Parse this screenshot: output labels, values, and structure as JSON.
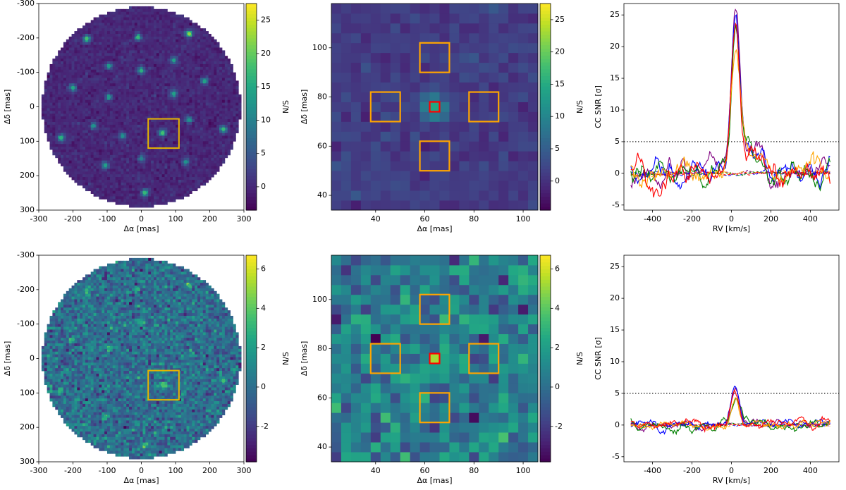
{
  "colors": {
    "viridis_stops": [
      "#440154",
      "#482475",
      "#414487",
      "#355f8d",
      "#2a788e",
      "#21918c",
      "#22a884",
      "#44bf70",
      "#7ad151",
      "#bddf26",
      "#fde725"
    ],
    "zoom_box_color": "#e6b400",
    "aperture_color": "#ffa500",
    "planet_box_color": "#ff0000",
    "rv_line_colors": [
      "#800080",
      "#0000ff",
      "#008000",
      "#ffa500",
      "#ff0000"
    ],
    "threshold_line_color": "#000000"
  },
  "chart_data": [
    {
      "id": "map_full_top",
      "type": "heatmap",
      "description_row": "top",
      "xlabel": "Δα [mas]",
      "ylabel": "Δδ [mas]",
      "xlim": [
        -300,
        300
      ],
      "ylim": [
        300,
        -300
      ],
      "xticks": [
        -300,
        -200,
        -100,
        0,
        100,
        200,
        300
      ],
      "yticks": [
        -300,
        -200,
        -100,
        0,
        100,
        200,
        300
      ],
      "field_radius": 290,
      "colorbar": {
        "label": "N/S",
        "vmin": -3.5,
        "vmax": 27.5,
        "ticks": [
          0,
          5,
          10,
          15,
          20,
          25
        ]
      },
      "noise_level": 0.9,
      "sources": [
        {
          "x": 140,
          "y": -212,
          "v": 22
        },
        {
          "x": -160,
          "y": -198,
          "v": 18
        },
        {
          "x": -10,
          "y": -202,
          "v": 17
        },
        {
          "x": 95,
          "y": -135,
          "v": 14
        },
        {
          "x": -95,
          "y": -118,
          "v": 13
        },
        {
          "x": 0,
          "y": -105,
          "v": 16
        },
        {
          "x": 185,
          "y": -75,
          "v": 14
        },
        {
          "x": -200,
          "y": -55,
          "v": 15
        },
        {
          "x": 95,
          "y": -38,
          "v": 14
        },
        {
          "x": -95,
          "y": -28,
          "v": 13
        },
        {
          "x": 140,
          "y": 38,
          "v": 12
        },
        {
          "x": -140,
          "y": 55,
          "v": 12
        },
        {
          "x": 240,
          "y": 65,
          "v": 17
        },
        {
          "x": 62,
          "y": 76,
          "v": 18
        },
        {
          "x": -55,
          "y": 85,
          "v": 12
        },
        {
          "x": -235,
          "y": 90,
          "v": 16
        },
        {
          "x": 0,
          "y": 150,
          "v": 10
        },
        {
          "x": 130,
          "y": 160,
          "v": 12
        },
        {
          "x": -105,
          "y": 170,
          "v": 14
        },
        {
          "x": 10,
          "y": 250,
          "v": 17
        }
      ],
      "zoom_box": {
        "x0": 20,
        "x1": 110,
        "y0": 35,
        "y1": 120
      }
    },
    {
      "id": "map_zoom_top",
      "type": "heatmap",
      "xlabel": "Δα [mas]",
      "ylabel": "Δδ [mas]",
      "xlim": [
        22,
        106
      ],
      "ylim": [
        34,
        118
      ],
      "xticks": [
        40,
        60,
        80,
        100
      ],
      "yticks": [
        40,
        60,
        80,
        100
      ],
      "grid_cell": 4,
      "colorbar": {
        "label": "N/S",
        "vmin": -4.5,
        "vmax": 27.5,
        "ticks": [
          0,
          5,
          10,
          15,
          20,
          25
        ]
      },
      "noise_level": 1.1,
      "noise_offset": 1.2,
      "planet": {
        "x": 64,
        "y": 76,
        "v": 14
      },
      "apertures": [
        {
          "x0": 58,
          "x1": 70,
          "y0": 90,
          "y1": 102
        },
        {
          "x0": 38,
          "x1": 50,
          "y0": 70,
          "y1": 82
        },
        {
          "x0": 78,
          "x1": 90,
          "y0": 70,
          "y1": 82
        },
        {
          "x0": 58,
          "x1": 70,
          "y0": 50,
          "y1": 62
        }
      ],
      "planet_box": {
        "x0": 62,
        "x1": 66,
        "y0": 74,
        "y1": 78
      }
    },
    {
      "id": "rv_top",
      "type": "line",
      "xlabel": "RV [km/s]",
      "ylabel": "CC SNR [σ]",
      "xlim": [
        -545,
        545
      ],
      "ylim": [
        -5.8,
        26.8
      ],
      "xticks": [
        -400,
        -200,
        0,
        200,
        400
      ],
      "yticks": [
        -5,
        0,
        5,
        10,
        15,
        20,
        25
      ],
      "threshold": 5,
      "peak_rv": 20,
      "series": [
        {
          "color": "#800080",
          "peak": 25.2,
          "noise_amp": 1.6,
          "wing": 4.0
        },
        {
          "color": "#0000ff",
          "peak": 23.3,
          "noise_amp": 1.5,
          "wing": 3.2
        },
        {
          "color": "#008000",
          "peak": 22.4,
          "noise_amp": 1.6,
          "wing": 3.4
        },
        {
          "color": "#ffa500",
          "peak": 20.8,
          "noise_amp": 1.7,
          "wing": 2.8
        },
        {
          "color": "#ff0000",
          "peak": 21.8,
          "noise_amp": 1.6,
          "wing": 3.0
        }
      ],
      "dashed_noise_amp": 0.25
    },
    {
      "id": "map_full_bottom",
      "type": "heatmap",
      "xlabel": "Δα [mas]",
      "ylabel": "Δδ [mas]",
      "xlim": [
        -300,
        300
      ],
      "ylim": [
        300,
        -300
      ],
      "xticks": [
        -300,
        -200,
        -100,
        0,
        100,
        200,
        300
      ],
      "yticks": [
        -300,
        -200,
        -100,
        0,
        100,
        200,
        300
      ],
      "field_radius": 290,
      "colorbar": {
        "label": "N/S",
        "vmin": -3.8,
        "vmax": 6.7,
        "ticks": [
          -2,
          0,
          2,
          4,
          6
        ]
      },
      "noise_level": 1.05,
      "sources": [
        {
          "x": 140,
          "y": -212,
          "v": 3.2
        },
        {
          "x": -160,
          "y": -198,
          "v": 3.0
        },
        {
          "x": -10,
          "y": -202,
          "v": 2.8
        },
        {
          "x": 0,
          "y": -105,
          "v": 2.5
        },
        {
          "x": -200,
          "y": -55,
          "v": 2.8
        },
        {
          "x": -95,
          "y": -28,
          "v": 2.6
        },
        {
          "x": 240,
          "y": 65,
          "v": 3.5
        },
        {
          "x": 62,
          "y": 76,
          "v": 3.6
        },
        {
          "x": -235,
          "y": 90,
          "v": 2.8
        },
        {
          "x": -105,
          "y": 170,
          "v": 2.6
        },
        {
          "x": 10,
          "y": 250,
          "v": 3.0
        }
      ],
      "zoom_box": {
        "x0": 20,
        "x1": 110,
        "y0": 35,
        "y1": 120
      }
    },
    {
      "id": "map_zoom_bottom",
      "type": "heatmap",
      "xlabel": "Δα [mas]",
      "ylabel": "Δδ [mas]",
      "xlim": [
        22,
        106
      ],
      "ylim": [
        34,
        118
      ],
      "xticks": [
        40,
        60,
        80,
        100
      ],
      "yticks": [
        40,
        60,
        80,
        100
      ],
      "grid_cell": 4,
      "colorbar": {
        "label": "N/S",
        "vmin": -3.8,
        "vmax": 6.7,
        "ticks": [
          -2,
          0,
          2,
          4,
          6
        ]
      },
      "noise_level": 1.3,
      "noise_offset": 0.6,
      "planet": {
        "x": 64,
        "y": 76,
        "v": 3.6
      },
      "apertures": [
        {
          "x0": 58,
          "x1": 70,
          "y0": 90,
          "y1": 102
        },
        {
          "x0": 38,
          "x1": 50,
          "y0": 70,
          "y1": 82
        },
        {
          "x0": 78,
          "x1": 90,
          "y0": 70,
          "y1": 82
        },
        {
          "x0": 58,
          "x1": 70,
          "y0": 50,
          "y1": 62
        }
      ],
      "planet_box": {
        "x0": 62,
        "x1": 66,
        "y0": 74,
        "y1": 78
      }
    },
    {
      "id": "rv_bottom",
      "type": "line",
      "xlabel": "RV [km/s]",
      "ylabel": "CC SNR [σ]",
      "xlim": [
        -545,
        545
      ],
      "ylim": [
        -5.8,
        26.8
      ],
      "xticks": [
        -400,
        -200,
        0,
        200,
        400
      ],
      "yticks": [
        -5,
        0,
        5,
        10,
        15,
        20,
        25
      ],
      "threshold": 5,
      "peak_rv": 20,
      "series": [
        {
          "color": "#800080",
          "peak": 5.2,
          "noise_amp": 0.6,
          "wing": 0.5
        },
        {
          "color": "#0000ff",
          "peak": 5.9,
          "noise_amp": 0.7,
          "wing": 0.4
        },
        {
          "color": "#008000",
          "peak": 4.2,
          "noise_amp": 0.7,
          "wing": 0.3
        },
        {
          "color": "#ffa500",
          "peak": 3.8,
          "noise_amp": 0.6,
          "wing": 0.3
        },
        {
          "color": "#ff0000",
          "peak": 4.6,
          "noise_amp": 0.7,
          "wing": 0.3
        }
      ],
      "dashed_noise_amp": 0.2
    }
  ]
}
